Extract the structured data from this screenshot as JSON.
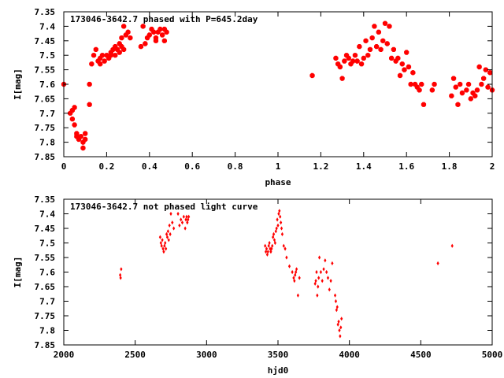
{
  "chart_data": [
    {
      "type": "scatter",
      "title": "173046-3642.7 phased with P=645.2day",
      "xlabel": "phase",
      "ylabel": "I[mag]",
      "xlim": [
        0,
        2
      ],
      "ylim": [
        7.85,
        7.35
      ],
      "y_inverted": true,
      "x_ticks": [
        "0",
        "0.2",
        "0.4",
        "0.6",
        "0.8",
        "1",
        "1.2",
        "1.4",
        "1.6",
        "1.8",
        "2"
      ],
      "y_ticks": [
        "7.35",
        "7.4",
        "7.45",
        "7.5",
        "7.55",
        "7.6",
        "7.65",
        "7.7",
        "7.75",
        "7.8",
        "7.85"
      ],
      "grid": false,
      "legend": "none",
      "marker": "star",
      "color": "#ff0000",
      "series": [
        {
          "x": [
            0.0,
            0.03,
            0.04,
            0.04,
            0.05,
            0.05,
            0.06,
            0.06,
            0.07,
            0.08,
            0.09,
            0.09,
            0.1,
            0.1,
            0.12,
            0.12,
            0.13,
            0.14,
            0.15,
            0.16,
            0.17,
            0.17,
            0.18,
            0.19,
            0.2,
            0.21,
            0.22,
            0.22,
            0.23,
            0.24,
            0.24,
            0.25,
            0.26,
            0.26,
            0.27,
            0.27,
            0.28,
            0.28,
            0.29,
            0.3,
            0.31,
            0.36,
            0.37,
            0.38,
            0.39,
            0.4,
            0.41,
            0.42,
            0.43,
            0.43,
            0.44,
            0.45,
            0.46,
            0.47,
            0.47,
            0.48,
            1.16,
            1.27,
            1.28,
            1.29,
            1.3,
            1.31,
            1.32,
            1.33,
            1.34,
            1.35,
            1.36,
            1.37,
            1.38,
            1.39,
            1.4,
            1.41,
            1.42,
            1.43,
            1.44,
            1.45,
            1.46,
            1.47,
            1.48,
            1.49,
            1.5,
            1.51,
            1.52,
            1.53,
            1.54,
            1.55,
            1.56,
            1.57,
            1.58,
            1.59,
            1.6,
            1.61,
            1.62,
            1.63,
            1.64,
            1.65,
            1.66,
            1.67,
            1.68,
            1.72,
            1.73,
            1.81,
            1.82,
            1.83,
            1.84,
            1.85,
            1.86,
            1.88,
            1.89,
            1.9,
            1.91,
            1.92,
            1.93,
            1.94,
            1.95,
            1.96,
            1.97,
            1.98,
            1.99,
            2.0
          ],
          "y": [
            7.6,
            7.7,
            7.69,
            7.72,
            7.74,
            7.68,
            7.77,
            7.78,
            7.79,
            7.78,
            7.82,
            7.8,
            7.79,
            7.77,
            7.67,
            7.6,
            7.53,
            7.5,
            7.48,
            7.52,
            7.51,
            7.53,
            7.5,
            7.52,
            7.5,
            7.51,
            7.49,
            7.5,
            7.48,
            7.47,
            7.5,
            7.48,
            7.46,
            7.49,
            7.44,
            7.47,
            7.4,
            7.48,
            7.43,
            7.42,
            7.44,
            7.47,
            7.4,
            7.46,
            7.44,
            7.43,
            7.41,
            7.42,
            7.44,
            7.45,
            7.42,
            7.41,
            7.43,
            7.41,
            7.45,
            7.42,
            7.57,
            7.51,
            7.53,
            7.54,
            7.58,
            7.52,
            7.5,
            7.51,
            7.53,
            7.52,
            7.5,
            7.52,
            7.47,
            7.53,
            7.51,
            7.45,
            7.5,
            7.48,
            7.44,
            7.4,
            7.47,
            7.42,
            7.48,
            7.45,
            7.39,
            7.46,
            7.4,
            7.51,
            7.48,
            7.52,
            7.51,
            7.57,
            7.53,
            7.55,
            7.49,
            7.54,
            7.6,
            7.56,
            7.6,
            7.61,
            7.62,
            7.6,
            7.67,
            7.62,
            7.6,
            7.64,
            7.58,
            7.61,
            7.67,
            7.6,
            7.63,
            7.62,
            7.6,
            7.65,
            7.63,
            7.64,
            7.62,
            7.54,
            7.6,
            7.58,
            7.55,
            7.61,
            7.56,
            7.62
          ]
        }
      ]
    },
    {
      "type": "scatter",
      "title": "173046-3642.7 not phased light curve",
      "xlabel": "hjd0",
      "ylabel": "I[mag]",
      "xlim": [
        2000,
        5000
      ],
      "ylim": [
        7.85,
        7.35
      ],
      "y_inverted": true,
      "x_ticks": [
        "2000",
        "2500",
        "3000",
        "3500",
        "4000",
        "4500",
        "5000"
      ],
      "y_ticks": [
        "7.35",
        "7.4",
        "7.45",
        "7.5",
        "7.55",
        "7.6",
        "7.65",
        "7.7",
        "7.75",
        "7.8",
        "7.85"
      ],
      "grid": false,
      "legend": "none",
      "marker": "diamond",
      "color": "#ff0000",
      "series": [
        {
          "x": [
            2395,
            2398,
            2402,
            2675,
            2680,
            2685,
            2690,
            2695,
            2700,
            2705,
            2710,
            2715,
            2720,
            2725,
            2730,
            2735,
            2740,
            2745,
            2750,
            2760,
            2770,
            2800,
            2810,
            2820,
            2830,
            2840,
            2850,
            2855,
            2860,
            2865,
            2870,
            2875,
            3410,
            3415,
            3420,
            3425,
            3430,
            3435,
            3440,
            3445,
            3450,
            3455,
            3460,
            3465,
            3470,
            3475,
            3480,
            3485,
            3490,
            3495,
            3500,
            3505,
            3510,
            3515,
            3520,
            3525,
            3530,
            3540,
            3550,
            3560,
            3580,
            3600,
            3610,
            3615,
            3620,
            3625,
            3630,
            3640,
            3650,
            3760,
            3765,
            3770,
            3775,
            3780,
            3785,
            3790,
            3800,
            3810,
            3820,
            3830,
            3840,
            3850,
            3860,
            3870,
            3880,
            3900,
            3905,
            3910,
            3915,
            3920,
            3925,
            3930,
            3935,
            3940,
            3945,
            4620,
            4720
          ],
          "y": [
            7.61,
            7.62,
            7.59,
            7.48,
            7.5,
            7.51,
            7.49,
            7.52,
            7.53,
            7.51,
            7.5,
            7.52,
            7.47,
            7.48,
            7.46,
            7.49,
            7.44,
            7.47,
            7.4,
            7.43,
            7.45,
            7.4,
            7.44,
            7.42,
            7.43,
            7.41,
            7.45,
            7.42,
            7.41,
            7.43,
            7.42,
            7.41,
            7.51,
            7.53,
            7.52,
            7.54,
            7.53,
            7.51,
            7.5,
            7.52,
            7.53,
            7.52,
            7.51,
            7.48,
            7.47,
            7.49,
            7.5,
            7.46,
            7.45,
            7.42,
            7.44,
            7.4,
            7.39,
            7.41,
            7.43,
            7.45,
            7.47,
            7.51,
            7.52,
            7.55,
            7.58,
            7.6,
            7.62,
            7.63,
            7.61,
            7.6,
            7.59,
            7.68,
            7.62,
            7.64,
            7.63,
            7.6,
            7.68,
            7.65,
            7.62,
            7.55,
            7.6,
            7.63,
            7.59,
            7.56,
            7.6,
            7.62,
            7.66,
            7.63,
            7.57,
            7.68,
            7.7,
            7.73,
            7.72,
            7.78,
            7.77,
            7.8,
            7.82,
            7.79,
            7.76,
            7.57,
            7.51
          ]
        }
      ]
    }
  ]
}
